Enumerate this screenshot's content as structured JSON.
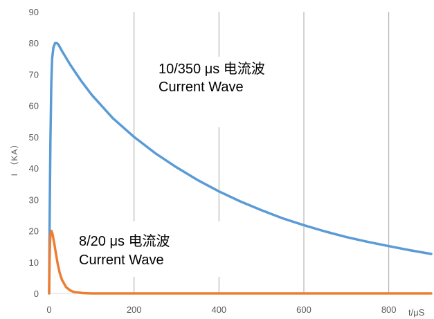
{
  "chart_data": {
    "type": "line",
    "ylabel": "I （KA）",
    "xlabel": "t/μS",
    "xlim": [
      0,
      900
    ],
    "ylim": [
      0,
      90
    ],
    "x_ticks": [
      0,
      200,
      400,
      600,
      800
    ],
    "y_ticks": [
      0,
      10,
      20,
      30,
      40,
      50,
      60,
      70,
      80,
      90
    ],
    "grid": "vertical",
    "series": [
      {
        "color": "#5b9bd5",
        "x": [
          0,
          1,
          2,
          3,
          4,
          5,
          7,
          10,
          14,
          18,
          22,
          30,
          50,
          75,
          100,
          150,
          200,
          250,
          300,
          350,
          400,
          450,
          500,
          550,
          600,
          650,
          700,
          750,
          800,
          850,
          900
        ],
        "values": [
          0,
          20,
          35,
          48,
          58,
          67,
          75,
          78.5,
          80,
          80,
          79.5,
          77.5,
          73,
          68,
          63.5,
          56,
          50,
          44.8,
          40.3,
          36.2,
          32.6,
          29.4,
          26.6,
          24,
          21.8,
          19.8,
          18,
          16.5,
          15.1,
          13.8,
          12.6
        ],
        "annotation": [
          "10/350 μs  电流波",
          "Current Wave"
        ]
      },
      {
        "color": "#ed7d31",
        "x": [
          0,
          1,
          2,
          3,
          4,
          5,
          6,
          8,
          10,
          12,
          15,
          20,
          25,
          30,
          40,
          50,
          60,
          80,
          100,
          150,
          200,
          300,
          400,
          500,
          600,
          700,
          800,
          900
        ],
        "values": [
          0,
          10,
          16,
          18.5,
          19.5,
          20,
          19.8,
          19,
          17.5,
          16,
          13.5,
          9.5,
          6.5,
          4.4,
          2,
          0.9,
          0.4,
          0.1,
          0,
          0,
          0,
          0,
          0,
          0,
          0,
          0,
          0,
          0
        ],
        "annotation": [
          "8/20 μs 电流波",
          "Current Wave"
        ]
      }
    ]
  }
}
